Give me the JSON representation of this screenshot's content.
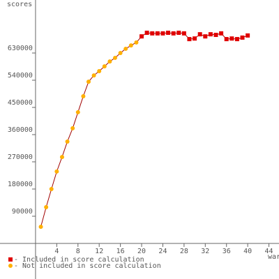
{
  "chart_data": {
    "type": "line",
    "y_label": "scores",
    "x_label": "war",
    "xlim": [
      -6.7,
      45.9
    ],
    "ylim": [
      -117700,
      805400
    ],
    "xticks": [
      4,
      8,
      12,
      16,
      20,
      24,
      28,
      32,
      36,
      40,
      44
    ],
    "yticks": [
      90000,
      180000,
      270000,
      360000,
      450000,
      540000,
      630000
    ],
    "line_color": "#a00000",
    "series": [
      {
        "name": "- Included in score calculation",
        "color": "#e00000",
        "marker": "square",
        "x": [
          20,
          21,
          22,
          23,
          24,
          25,
          26,
          27,
          28,
          29,
          30,
          31,
          32,
          33,
          34,
          35,
          36,
          37,
          38,
          39,
          40
        ],
        "values": [
          685000,
          697000,
          695000,
          695000,
          695000,
          697000,
          695000,
          697000,
          695000,
          676000,
          678000,
          692000,
          685000,
          692000,
          690000,
          695000,
          676000,
          678000,
          676000,
          681000,
          688000
        ]
      },
      {
        "name": "- Not included in score calculation",
        "color": "#ffb000",
        "marker": "circle",
        "x": [
          1,
          2,
          3,
          4,
          5,
          6,
          7,
          8,
          9,
          10,
          11,
          12,
          13,
          14,
          15,
          16,
          17,
          18,
          19,
          20
        ],
        "values": [
          55000,
          120000,
          180000,
          238000,
          286000,
          337000,
          381000,
          434000,
          487000,
          535000,
          556000,
          570000,
          586000,
          602000,
          614000,
          630000,
          644000,
          655000,
          665000,
          685000
        ]
      }
    ]
  }
}
